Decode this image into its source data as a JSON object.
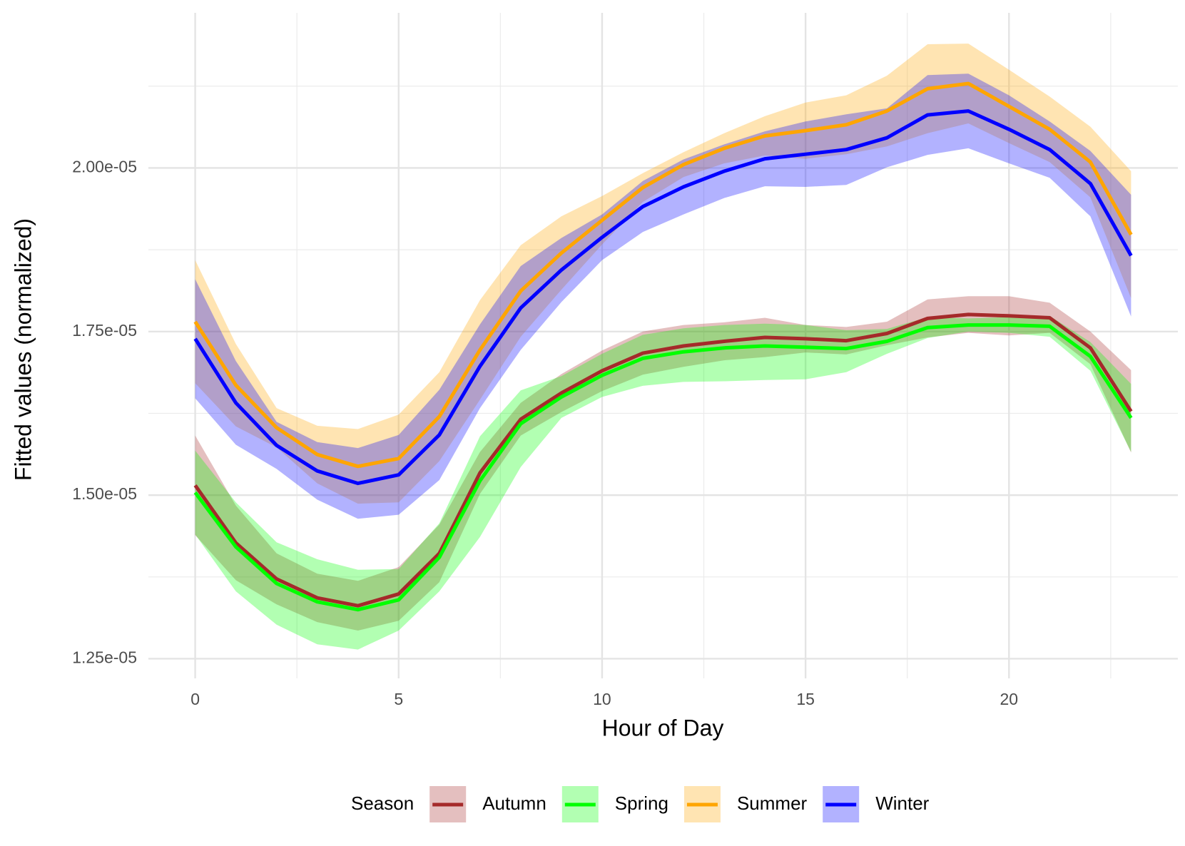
{
  "chart_data": {
    "type": "ribbon-line",
    "x_label": "Hour of Day",
    "y_label": "Fitted values (normalized)",
    "x": [
      0,
      1,
      2,
      3,
      4,
      5,
      6,
      7,
      8,
      9,
      10,
      11,
      12,
      13,
      14,
      15,
      16,
      17,
      18,
      19,
      20,
      21,
      22,
      23
    ],
    "xlim": [
      -1.15,
      24.15
    ],
    "xticks": [
      0,
      5,
      10,
      15,
      20
    ],
    "ylim": [
      1.22e-05,
      2.237e-05
    ],
    "yticks": [
      {
        "value": 1.25e-05,
        "label": "1.25e-05"
      },
      {
        "value": 1.5e-05,
        "label": "1.50e-05"
      },
      {
        "value": 1.75e-05,
        "label": "1.75e-05"
      },
      {
        "value": 2e-05,
        "label": "2.00e-05"
      }
    ],
    "grid": true,
    "band_opacity": 0.3,
    "legend_title": "Season",
    "legend_position": "bottom",
    "series": [
      {
        "name": "Autumn",
        "color": "#a52a2a",
        "values": [
          1.515e-05,
          1.427e-05,
          1.372e-05,
          1.343e-05,
          1.331e-05,
          1.349e-05,
          1.411e-05,
          1.534e-05,
          1.616e-05,
          1.656e-05,
          1.69e-05,
          1.717e-05,
          1.728e-05,
          1.735e-05,
          1.741e-05,
          1.739e-05,
          1.736e-05,
          1.747e-05,
          1.77e-05,
          1.776e-05,
          1.774e-05,
          1.771e-05,
          1.725e-05,
          1.628e-05
        ],
        "lower": [
          1.439e-05,
          1.37e-05,
          1.333e-05,
          1.306e-05,
          1.293e-05,
          1.308e-05,
          1.367e-05,
          1.502e-05,
          1.591e-05,
          1.627e-05,
          1.659e-05,
          1.684e-05,
          1.696e-05,
          1.706e-05,
          1.711e-05,
          1.718e-05,
          1.715e-05,
          1.729e-05,
          1.741e-05,
          1.748e-05,
          1.744e-05,
          1.748e-05,
          1.7e-05,
          1.565e-05
        ],
        "upper": [
          1.591e-05,
          1.484e-05,
          1.411e-05,
          1.38e-05,
          1.369e-05,
          1.39e-05,
          1.455e-05,
          1.566e-05,
          1.641e-05,
          1.685e-05,
          1.721e-05,
          1.75e-05,
          1.76e-05,
          1.764e-05,
          1.771e-05,
          1.76e-05,
          1.757e-05,
          1.765e-05,
          1.799e-05,
          1.804e-05,
          1.804e-05,
          1.794e-05,
          1.75e-05,
          1.691e-05
        ]
      },
      {
        "name": "Spring",
        "color": "#00ff00",
        "values": [
          1.504e-05,
          1.421e-05,
          1.365e-05,
          1.337e-05,
          1.325e-05,
          1.34e-05,
          1.405e-05,
          1.522e-05,
          1.609e-05,
          1.65e-05,
          1.683e-05,
          1.709e-05,
          1.719e-05,
          1.725e-05,
          1.728e-05,
          1.726e-05,
          1.724e-05,
          1.735e-05,
          1.756e-05,
          1.76e-05,
          1.76e-05,
          1.758e-05,
          1.712e-05,
          1.618e-05
        ],
        "lower": [
          1.44e-05,
          1.353e-05,
          1.302e-05,
          1.272e-05,
          1.264e-05,
          1.293e-05,
          1.353e-05,
          1.436e-05,
          1.543e-05,
          1.618e-05,
          1.65e-05,
          1.667e-05,
          1.673e-05,
          1.674e-05,
          1.676e-05,
          1.677e-05,
          1.688e-05,
          1.716e-05,
          1.74e-05,
          1.75e-05,
          1.748e-05,
          1.742e-05,
          1.69e-05,
          1.566e-05
        ],
        "upper": [
          1.568e-05,
          1.489e-05,
          1.428e-05,
          1.402e-05,
          1.386e-05,
          1.387e-05,
          1.457e-05,
          1.59e-05,
          1.66e-05,
          1.682e-05,
          1.716e-05,
          1.745e-05,
          1.755e-05,
          1.76e-05,
          1.762e-05,
          1.76e-05,
          1.752e-05,
          1.754e-05,
          1.772e-05,
          1.77e-05,
          1.772e-05,
          1.774e-05,
          1.734e-05,
          1.67e-05
        ]
      },
      {
        "name": "Summer",
        "color": "#ffa500",
        "values": [
          1.765e-05,
          1.668e-05,
          1.603e-05,
          1.562e-05,
          1.544e-05,
          1.556e-05,
          1.62e-05,
          1.722e-05,
          1.812e-05,
          1.87e-05,
          1.92e-05,
          1.97e-05,
          2.005e-05,
          2.03e-05,
          2.049e-05,
          2.057e-05,
          2.066e-05,
          2.087e-05,
          2.121e-05,
          2.129e-05,
          2.094e-05,
          2.059e-05,
          2.009e-05,
          1.898e-05
        ],
        "lower": [
          1.671e-05,
          1.605e-05,
          1.573e-05,
          1.518e-05,
          1.487e-05,
          1.489e-05,
          1.552e-05,
          1.646e-05,
          1.742e-05,
          1.814e-05,
          1.883e-05,
          1.948e-05,
          1.986e-05,
          2.007e-05,
          2.019e-05,
          2.014e-05,
          2.021e-05,
          2.033e-05,
          2.053e-05,
          2.068e-05,
          2.038e-05,
          2.009e-05,
          1.955e-05,
          1.801e-05
        ],
        "upper": [
          1.859e-05,
          1.731e-05,
          1.633e-05,
          1.606e-05,
          1.601e-05,
          1.623e-05,
          1.688e-05,
          1.798e-05,
          1.882e-05,
          1.926e-05,
          1.957e-05,
          1.992e-05,
          2.024e-05,
          2.053e-05,
          2.079e-05,
          2.1e-05,
          2.111e-05,
          2.141e-05,
          2.189e-05,
          2.19e-05,
          2.15e-05,
          2.109e-05,
          2.063e-05,
          1.995e-05
        ]
      },
      {
        "name": "Winter",
        "color": "#0000ff",
        "values": [
          1.739e-05,
          1.641e-05,
          1.576e-05,
          1.537e-05,
          1.518e-05,
          1.531e-05,
          1.592e-05,
          1.697e-05,
          1.786e-05,
          1.844e-05,
          1.894e-05,
          1.941e-05,
          1.971e-05,
          1.995e-05,
          2.014e-05,
          2.021e-05,
          2.028e-05,
          2.046e-05,
          2.081e-05,
          2.087e-05,
          2.059e-05,
          2.028e-05,
          1.976e-05,
          1.866e-05
        ],
        "lower": [
          1.648e-05,
          1.577e-05,
          1.54e-05,
          1.493e-05,
          1.464e-05,
          1.47e-05,
          1.523e-05,
          1.633e-05,
          1.722e-05,
          1.795e-05,
          1.859e-05,
          1.902e-05,
          1.929e-05,
          1.954e-05,
          1.972e-05,
          1.971e-05,
          1.974e-05,
          2.001e-05,
          2.02e-05,
          2.03e-05,
          2.007e-05,
          1.985e-05,
          1.926e-05,
          1.773e-05
        ],
        "upper": [
          1.83e-05,
          1.705e-05,
          1.612e-05,
          1.581e-05,
          1.572e-05,
          1.592e-05,
          1.661e-05,
          1.761e-05,
          1.85e-05,
          1.893e-05,
          1.929e-05,
          1.98e-05,
          2.013e-05,
          2.036e-05,
          2.056e-05,
          2.071e-05,
          2.082e-05,
          2.091e-05,
          2.142e-05,
          2.144e-05,
          2.111e-05,
          2.071e-05,
          2.026e-05,
          1.959e-05
        ]
      }
    ]
  }
}
